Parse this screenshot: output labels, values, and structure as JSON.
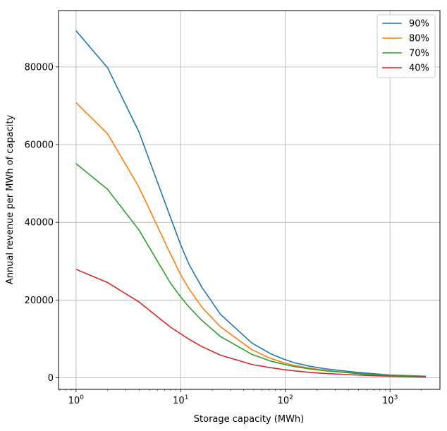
{
  "chart_data": {
    "type": "line",
    "xlabel": "Storage capacity (MWh)",
    "ylabel": "Annual revenue per MWh of capacity",
    "xscale": "log",
    "xlim": [
      0.68,
      3000
    ],
    "ylim": [
      -3000,
      94500
    ],
    "x_major_ticks": [
      1,
      10,
      100,
      1000
    ],
    "x_tick_labels": [
      {
        "base": "10",
        "exp": "0"
      },
      {
        "base": "10",
        "exp": "1"
      },
      {
        "base": "10",
        "exp": "2"
      },
      {
        "base": "10",
        "exp": "3"
      }
    ],
    "y_ticks": [
      0,
      20000,
      40000,
      60000,
      80000
    ],
    "y_tick_labels": [
      "0",
      "20000",
      "40000",
      "60000",
      "80000"
    ],
    "grid": true,
    "legend_position": "top-right",
    "series": [
      {
        "name": "90%",
        "color": "#1f77b4",
        "x": [
          1,
          2,
          4,
          8,
          10,
          12,
          16,
          24,
          48,
          72,
          96,
          120,
          168,
          240,
          480,
          720,
          1000,
          2200
        ],
        "y": [
          89300,
          79800,
          63200,
          41200,
          34200,
          29200,
          23200,
          16300,
          8900,
          6200,
          4800,
          3900,
          3000,
          2300,
          1400,
          1000,
          700,
          400
        ]
      },
      {
        "name": "80%",
        "color": "#ff7f0e",
        "x": [
          1,
          2,
          4,
          8,
          10,
          12,
          16,
          24,
          48,
          72,
          96,
          120,
          168,
          240,
          480,
          720,
          1000,
          2200
        ],
        "y": [
          70800,
          62800,
          49000,
          31800,
          26500,
          22900,
          18100,
          13100,
          7200,
          5000,
          3900,
          3200,
          2500,
          1900,
          1100,
          800,
          600,
          300
        ]
      },
      {
        "name": "70%",
        "color": "#2ca02c",
        "x": [
          1,
          2,
          4,
          8,
          10,
          12,
          16,
          24,
          48,
          72,
          96,
          120,
          168,
          240,
          480,
          720,
          1000,
          2200
        ],
        "y": [
          55100,
          48500,
          38000,
          24300,
          20800,
          18200,
          14700,
          10600,
          6000,
          4300,
          3500,
          2900,
          2300,
          1800,
          1100,
          800,
          600,
          300
        ]
      },
      {
        "name": "40%",
        "color": "#d62728",
        "x": [
          1,
          2,
          4,
          8,
          10,
          12,
          16,
          24,
          48,
          72,
          96,
          120,
          168,
          240,
          480,
          720,
          1000,
          2200
        ],
        "y": [
          27900,
          24500,
          19500,
          13000,
          11300,
          9900,
          8000,
          5800,
          3400,
          2600,
          2100,
          1800,
          1400,
          1100,
          700,
          500,
          400,
          200
        ]
      }
    ]
  }
}
